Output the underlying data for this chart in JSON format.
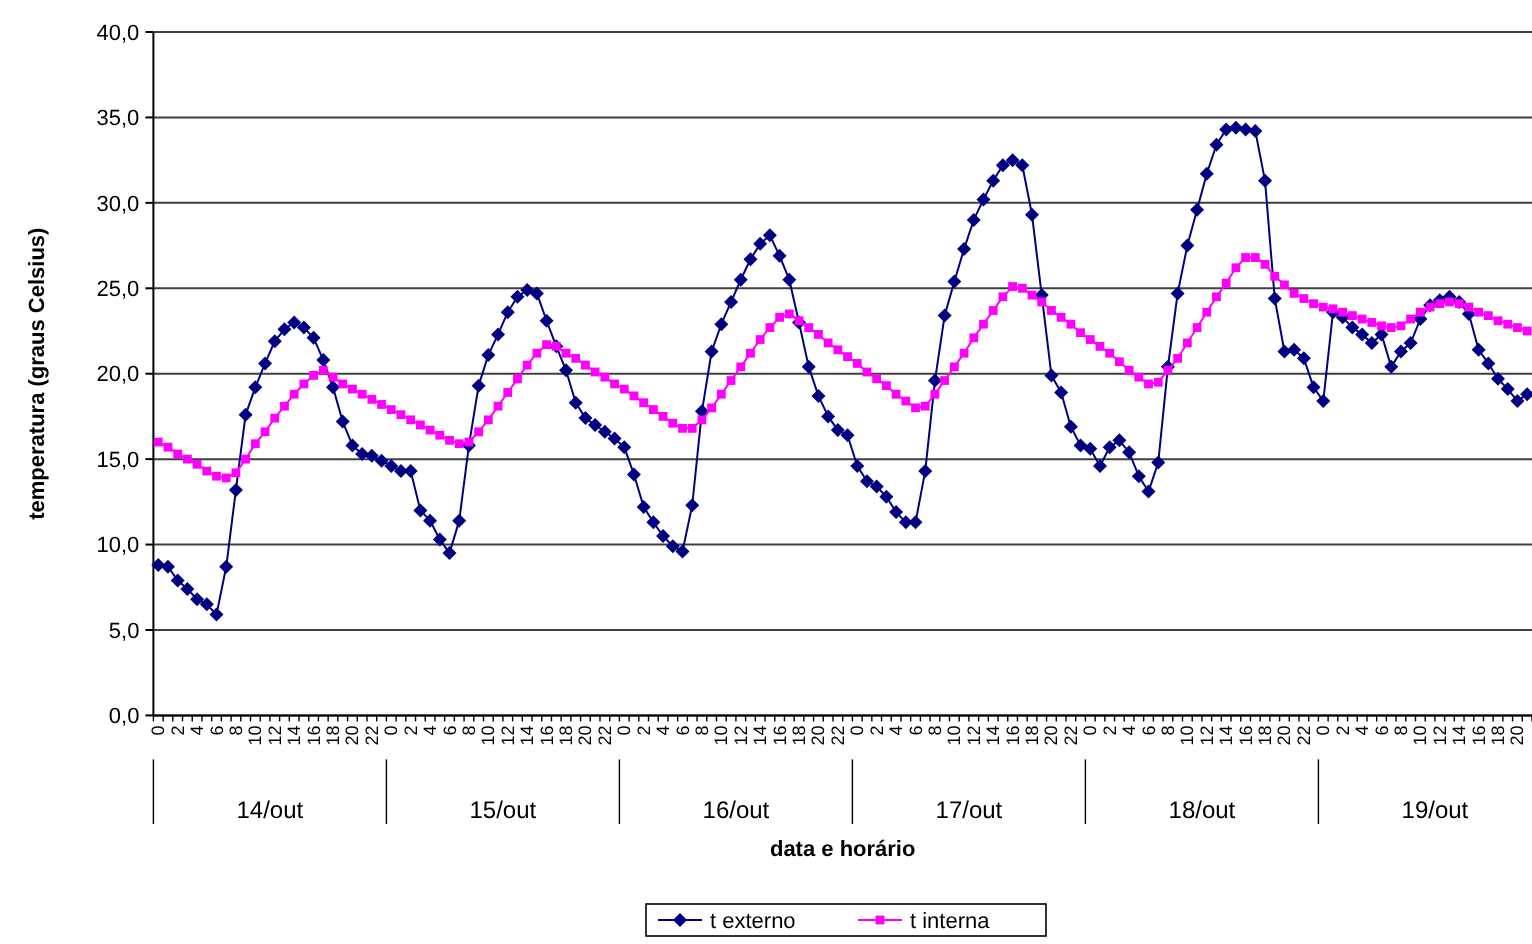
{
  "chart_data": {
    "type": "line",
    "xlabel": "data e horário",
    "ylabel": "temperatura (graus Celsius)",
    "categories": [
      "0",
      null,
      "2",
      null,
      "4",
      null,
      "6",
      null,
      "8",
      null,
      "10",
      null,
      "12",
      null,
      "14",
      null,
      "16",
      null,
      "18",
      null,
      "20",
      null,
      "22",
      null,
      "0",
      null,
      "2",
      null,
      "4",
      null,
      "6",
      null,
      "8",
      null,
      "10",
      null,
      "12",
      null,
      "14",
      null,
      "16",
      null,
      "18",
      null,
      "20",
      null,
      "22",
      null,
      "0",
      null,
      "2",
      null,
      "4",
      null,
      "6",
      null,
      "8",
      null,
      "10",
      null,
      "12",
      null,
      "14",
      null,
      "16",
      null,
      "18",
      null,
      "20",
      null,
      "22",
      null,
      "0",
      null,
      "2",
      null,
      "4",
      null,
      "6",
      null,
      "8",
      null,
      "10",
      null,
      "12",
      null,
      "14",
      null,
      "16",
      null,
      "18",
      null,
      "20",
      null,
      "22",
      null,
      "0",
      null,
      "2",
      null,
      "4",
      null,
      "6",
      null,
      "8",
      null,
      "10",
      null,
      "12",
      null,
      "14",
      null,
      "16",
      null,
      "18",
      null,
      "20",
      null,
      "22",
      null,
      "0",
      null,
      "2",
      null,
      "4",
      null,
      "6",
      null,
      "8",
      null,
      "10",
      null,
      "12",
      null,
      "14",
      null,
      "16",
      null,
      "18",
      null,
      "20",
      null
    ],
    "annotations": [
      "14/out",
      "15/out",
      "16/out",
      "17/out",
      "18/out",
      "19/out"
    ],
    "series": [
      {
        "name": "t externo",
        "color": "#000080",
        "marker": "diamond",
        "values": [
          8.8,
          8.7,
          7.9,
          7.4,
          6.8,
          6.5,
          5.9,
          8.7,
          13.2,
          17.6,
          19.2,
          20.6,
          21.9,
          22.6,
          23.0,
          22.7,
          22.1,
          20.8,
          19.2,
          17.2,
          15.8,
          15.3,
          15.2,
          14.9,
          14.6,
          14.3,
          14.3,
          12.0,
          11.4,
          10.3,
          9.5,
          11.4,
          15.8,
          19.3,
          21.1,
          22.3,
          23.6,
          24.5,
          24.9,
          24.7,
          23.1,
          21.6,
          20.2,
          18.3,
          17.4,
          17.0,
          16.6,
          16.2,
          15.7,
          14.1,
          12.2,
          11.3,
          10.5,
          9.9,
          9.6,
          12.3,
          17.8,
          21.3,
          22.9,
          24.2,
          25.5,
          26.7,
          27.6,
          28.1,
          26.9,
          25.5,
          23.0,
          20.4,
          18.7,
          17.5,
          16.7,
          16.4,
          14.6,
          13.7,
          13.4,
          12.8,
          11.9,
          11.3,
          11.3,
          14.3,
          19.6,
          23.4,
          25.4,
          27.3,
          29.0,
          30.2,
          31.3,
          32.2,
          32.5,
          32.2,
          29.3,
          24.6,
          19.9,
          18.9,
          16.9,
          15.8,
          15.6,
          14.6,
          15.7,
          16.1,
          15.4,
          14.0,
          13.1,
          14.8,
          20.4,
          24.7,
          27.5,
          29.6,
          31.7,
          33.4,
          34.3,
          34.4,
          34.3,
          34.2,
          31.3,
          24.4,
          21.3,
          21.4,
          20.9,
          19.2,
          18.4,
          23.6,
          23.3,
          22.7,
          22.3,
          21.8,
          22.3,
          20.4,
          21.3,
          21.8,
          23.2,
          24.0,
          24.3,
          24.5,
          24.2,
          23.5,
          21.4,
          20.6,
          19.7,
          19.1,
          18.4,
          18.8
        ]
      },
      {
        "name": "t interna",
        "color": "#ff00ff",
        "marker": "square",
        "values": [
          16.0,
          15.7,
          15.3,
          15.0,
          14.7,
          14.3,
          14.0,
          13.9,
          14.2,
          15.0,
          15.9,
          16.6,
          17.4,
          18.1,
          18.8,
          19.4,
          19.9,
          20.2,
          19.8,
          19.4,
          19.1,
          18.8,
          18.5,
          18.2,
          17.9,
          17.6,
          17.3,
          17.0,
          16.7,
          16.4,
          16.1,
          15.9,
          16.0,
          16.6,
          17.3,
          18.1,
          18.9,
          19.7,
          20.5,
          21.2,
          21.7,
          21.6,
          21.2,
          20.9,
          20.5,
          20.1,
          19.8,
          19.4,
          19.1,
          18.7,
          18.3,
          17.9,
          17.5,
          17.1,
          16.8,
          16.8,
          17.3,
          18.0,
          18.8,
          19.6,
          20.4,
          21.2,
          22.0,
          22.7,
          23.3,
          23.5,
          23.1,
          22.7,
          22.3,
          21.8,
          21.4,
          21.0,
          20.6,
          20.1,
          19.7,
          19.3,
          18.8,
          18.4,
          18.0,
          18.1,
          18.8,
          19.6,
          20.4,
          21.2,
          22.1,
          22.9,
          23.7,
          24.5,
          25.1,
          25.0,
          24.6,
          24.2,
          23.7,
          23.3,
          22.9,
          22.4,
          22.0,
          21.6,
          21.2,
          20.7,
          20.2,
          19.8,
          19.4,
          19.5,
          20.2,
          20.9,
          21.8,
          22.7,
          23.6,
          24.5,
          25.3,
          26.2,
          26.8,
          26.8,
          26.4,
          25.7,
          25.2,
          24.7,
          24.4,
          24.1,
          23.9,
          23.8,
          23.6,
          23.4,
          23.2,
          23.0,
          22.8,
          22.7,
          22.8,
          23.2,
          23.6,
          23.9,
          24.1,
          24.2,
          24.1,
          23.9,
          23.6,
          23.4,
          23.1,
          22.9,
          22.7,
          22.5
        ]
      }
    ],
    "ylim": [
      0,
      40
    ],
    "yticks": [
      {
        "value": 0,
        "label": "0,0"
      },
      {
        "value": 5,
        "label": "5,0"
      },
      {
        "value": 10,
        "label": "10,0"
      },
      {
        "value": 15,
        "label": "15,0"
      },
      {
        "value": 20,
        "label": "20,0"
      },
      {
        "value": 25,
        "label": "25,0"
      },
      {
        "value": 30,
        "label": "30,0"
      },
      {
        "value": 35,
        "label": "35,0"
      },
      {
        "value": 40,
        "label": "40,0"
      }
    ],
    "grid": "y",
    "legend": "bottom"
  }
}
